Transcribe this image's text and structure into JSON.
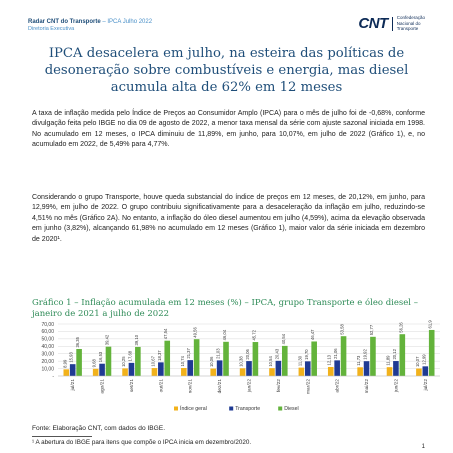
{
  "header": {
    "title_bold": "Radar CNT do Transporte",
    "title_rest": " – IPCA Julho 2022",
    "subtitle": "Diretoria Executiva"
  },
  "logo": {
    "mark": "CNT",
    "line1": "Confederação",
    "line2": "Nacional do",
    "line3": "Transporte"
  },
  "title": "IPCA desacelera em julho, na esteira das políticas de desoneração sobre combustíveis e energia, mas diesel acumula alta de 62% em 12 meses",
  "paragraphs": [
    "A taxa de inflação medida pelo Índice de Preços ao Consumidor Amplo (IPCA) para o mês de julho foi de -0,68%, conforme divulgação feita pelo IBGE no dia 09 de agosto de 2022, a menor taxa mensal da série com ajuste sazonal iniciada em 1998. No acumulado em 12 meses, o IPCA diminuiu de 11,89%, em junho, para 10,07%, em julho de 2022 (Gráfico 1), e, no acumulado em 2022, de 5,49% para 4,77%.",
    "Considerando o grupo Transporte, houve queda substancial do índice de preços em 12 meses, de 20,12%, em junho, para 12,99%, em julho de 2022. O grupo contribuiu significativamente para a desaceleração da inflação em julho, reduzindo-se 4,51% no mês (Gráfico 2A). No entanto, a inflação do óleo diesel aumentou em julho (4,59%), acima da elevação observada em junho (3,82%), alcançando 61,98% no acumulado em 12 meses (Gráfico 1), maior valor da série iniciada em dezembro de 2020¹."
  ],
  "chart_title": "Gráfico 1 – Inflação acumulada em 12 meses (%) – IPCA, grupo Transporte e óleo diesel – janeiro de 2021 a julho de 2022",
  "chart_data": {
    "type": "bar",
    "categories": [
      "jul/21",
      "ago/21",
      "set/21",
      "out/21",
      "nov/21",
      "dez/21",
      "jan/22",
      "fev/22",
      "mar/22",
      "abr/22",
      "mai/22",
      "jun/22",
      "jul/22"
    ],
    "series": [
      {
        "name": "Índice geral",
        "color": "#f2b21b",
        "values": [
          8.99,
          9.68,
          10.25,
          10.67,
          10.74,
          10.06,
          10.38,
          10.54,
          11.3,
          12.13,
          11.73,
          11.89,
          10.07
        ]
      },
      {
        "name": "Transporte",
        "color": "#1f3a93",
        "values": [
          15.93,
          16.53,
          17.68,
          18.37,
          21.37,
          21.03,
          20.06,
          20.43,
          19.7,
          21.06,
          19.92,
          20.12,
          12.99
        ]
      },
      {
        "name": "Diesel",
        "color": "#63b33b",
        "values": [
          36.35,
          39.42,
          39.1,
          47.54,
          49.56,
          46.04,
          45.72,
          40.54,
          46.47,
          53.58,
          52.77,
          56.26,
          61.98
        ]
      }
    ],
    "value_labels": [
      [
        "8,99",
        "9,68",
        "10,25",
        "10,67",
        "10,74",
        "10,06",
        "10,38",
        "10,54",
        "11,30",
        "12,13",
        "11,73",
        "11,89",
        "10,07"
      ],
      [
        "15,93",
        "16,53",
        "17,68",
        "18,37",
        "21,37",
        "21,03",
        "20,06",
        "20,43",
        "19,70",
        "21,06",
        "19,92",
        "20,12",
        "12,99"
      ],
      [
        "36,35",
        "39,42",
        "39,10",
        "47,54",
        "49,56",
        "46,04",
        "45,72",
        "40,54",
        "46,47",
        "53,58",
        "52,77",
        "56,26",
        "61,98"
      ]
    ],
    "yticks": [
      {
        "v": 70,
        "label": "70,00"
      },
      {
        "v": 60,
        "label": "60,00"
      },
      {
        "v": 50,
        "label": "50,00"
      },
      {
        "v": 40,
        "label": "40,00"
      },
      {
        "v": 30,
        "label": "30,00"
      },
      {
        "v": 20,
        "label": "20,00"
      },
      {
        "v": 10,
        "label": "10,00"
      },
      {
        "v": 0,
        "label": "-"
      }
    ],
    "ylim": [
      0,
      70
    ],
    "grid": true,
    "legend": "bottom"
  },
  "source": "Fonte: Elaboração CNT, com dados do IBGE.",
  "footnote": "¹ A abertura do IBGE para itens que compõe o IPCA inicia em dezembro/2020.",
  "page_number": "1"
}
